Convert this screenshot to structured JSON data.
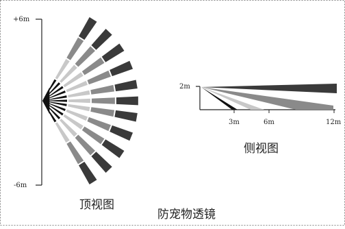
{
  "top_view": {
    "label_top": "+6m",
    "label_bottom": "-6m",
    "caption": "顶视图"
  },
  "side_view": {
    "height_label": "2m",
    "tick_3m": "3m",
    "tick_6m": "6m",
    "tick_12m": "12m",
    "caption": "侧视图"
  },
  "lens_title": "防宠物透镜",
  "colors": {
    "black": "#111111",
    "dark": "#3a3a3a",
    "mid": "#8a8a8a",
    "light": "#c8c8c8"
  }
}
